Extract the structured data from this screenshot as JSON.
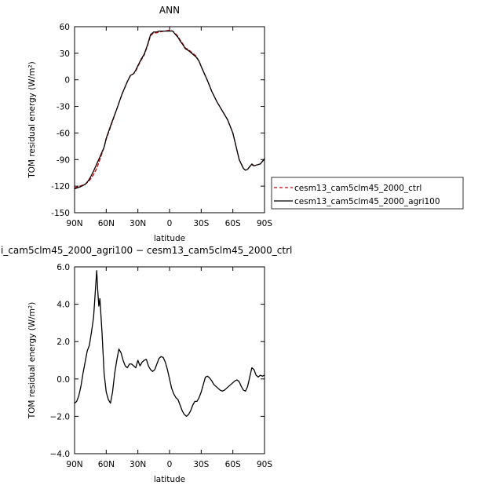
{
  "chart_data": [
    {
      "type": "line",
      "title": "ANN",
      "xlabel": "latitude",
      "ylabel": "TOM residual energy (W/m²)",
      "xlim": [
        90,
        -90
      ],
      "ylim": [
        -150,
        60
      ],
      "x_ticks": [
        90,
        60,
        30,
        0,
        -30,
        -60,
        -90
      ],
      "x_tick_labels": [
        "90N",
        "60N",
        "30N",
        "0",
        "30S",
        "60S",
        "90S"
      ],
      "y_ticks": [
        60,
        30,
        0,
        -30,
        -60,
        -90,
        -120,
        -150
      ],
      "y_tick_labels": [
        "60",
        "30",
        "0",
        "-30",
        "-60",
        "-90",
        "-120",
        "-150"
      ],
      "grid": false,
      "legend_position": "right",
      "legend": [
        "cesm13_cam5clm45_2000_ctrl",
        "cesm13_cam5clm45_2000_agri100"
      ],
      "series": [
        {
          "name": "cesm13_cam5clm45_2000_ctrl",
          "color": "#cc0000",
          "dash": "dashed",
          "x": [
            90,
            85,
            80,
            77,
            75,
            72,
            69,
            66,
            62,
            60,
            55,
            50,
            45,
            40,
            37,
            34,
            32,
            30,
            27,
            24,
            21,
            18,
            15,
            12,
            10,
            5,
            0,
            -3,
            -5,
            -8,
            -10,
            -13,
            -15,
            -18,
            -20,
            -22,
            -25,
            -28,
            -30,
            -33,
            -36,
            -40,
            -45,
            -50,
            -55,
            -60,
            -63,
            -66,
            -70,
            -72,
            -74,
            -76,
            -78,
            -80,
            -83,
            -86,
            -88,
            -90
          ],
          "y": [
            -122,
            -120,
            -118,
            -115,
            -112,
            -107,
            -100,
            -90,
            -76,
            -67,
            -50,
            -33,
            -16,
            -2,
            5,
            7,
            10,
            15,
            22,
            28,
            38,
            50,
            53,
            53,
            54,
            55,
            56,
            55,
            53,
            49,
            45,
            40,
            36,
            34,
            32,
            30,
            27,
            21,
            15,
            7,
            -1,
            -13,
            -25,
            -35,
            -45,
            -60,
            -75,
            -90,
            -100,
            -102,
            -101,
            -98,
            -96,
            -97,
            -96,
            -95,
            -92,
            -90
          ]
        },
        {
          "name": "cesm13_cam5clm45_2000_agri100",
          "color": "#000000",
          "dash": "solid",
          "x": [
            90,
            85,
            80,
            77,
            75,
            72,
            69,
            66,
            62,
            60,
            55,
            50,
            45,
            40,
            37,
            34,
            32,
            30,
            27,
            24,
            21,
            18,
            15,
            12,
            10,
            5,
            0,
            -3,
            -5,
            -8,
            -10,
            -13,
            -15,
            -18,
            -20,
            -22,
            -25,
            -28,
            -30,
            -33,
            -36,
            -40,
            -45,
            -50,
            -55,
            -60,
            -63,
            -66,
            -70,
            -72,
            -74,
            -76,
            -78,
            -80,
            -83,
            -86,
            -88,
            -90
          ],
          "y": [
            -123,
            -121,
            -118,
            -114,
            -110,
            -103,
            -95,
            -87,
            -76,
            -66,
            -49,
            -33,
            -16,
            -2,
            5,
            7,
            11,
            16,
            23,
            29,
            39,
            51,
            54,
            54,
            55,
            55,
            55,
            55,
            52,
            48,
            44,
            39,
            35,
            33,
            31,
            29,
            26,
            21,
            15,
            7,
            -1,
            -13,
            -25,
            -35,
            -45,
            -60,
            -75,
            -90,
            -100,
            -102,
            -101,
            -98,
            -95,
            -97,
            -96,
            -95,
            -92,
            -89
          ]
        }
      ]
    },
    {
      "type": "line",
      "title": "i_cam5clm45_2000_agri100 − cesm13_cam5clm45_2000_ctrl",
      "xlabel": "latitude",
      "ylabel": "TOM residual energy (W/m²)",
      "xlim": [
        90,
        -90
      ],
      "ylim": [
        -4.0,
        6.0
      ],
      "x_ticks": [
        90,
        60,
        30,
        0,
        -30,
        -60,
        -90
      ],
      "x_tick_labels": [
        "90N",
        "60N",
        "30N",
        "0",
        "30S",
        "60S",
        "90S"
      ],
      "y_ticks": [
        6,
        4,
        2,
        0,
        -2,
        -4
      ],
      "y_tick_labels": [
        "6.0",
        "4.0",
        "2.0",
        "0.0",
        "−2.0",
        "−4.0"
      ],
      "grid": false,
      "series": [
        {
          "color": "#000000",
          "dash": "solid",
          "x": [
            90,
            88,
            86,
            84,
            82,
            80,
            78,
            76,
            74,
            72,
            71,
            70,
            69,
            68,
            67,
            66,
            64,
            62,
            60,
            58,
            56,
            54,
            52,
            50,
            48,
            46,
            44,
            42,
            40,
            38,
            36,
            34,
            32,
            30,
            28,
            26,
            24,
            22,
            20,
            18,
            16,
            14,
            12,
            10,
            8,
            6,
            4,
            2,
            0,
            -2,
            -4,
            -6,
            -8,
            -10,
            -12,
            -14,
            -16,
            -18,
            -20,
            -22,
            -24,
            -26,
            -28,
            -30,
            -32,
            -34,
            -36,
            -38,
            -40,
            -42,
            -44,
            -46,
            -48,
            -50,
            -52,
            -54,
            -56,
            -58,
            -60,
            -62,
            -64,
            -66,
            -68,
            -70,
            -72,
            -74,
            -76,
            -78,
            -80,
            -82,
            -84,
            -86,
            -88,
            -90
          ],
          "y": [
            -1.3,
            -1.2,
            -0.9,
            -0.4,
            0.3,
            0.9,
            1.5,
            1.8,
            2.5,
            3.3,
            4.1,
            5.0,
            5.8,
            4.7,
            3.9,
            4.3,
            2.5,
            0.3,
            -0.7,
            -1.1,
            -1.3,
            -0.7,
            0.3,
            1.0,
            1.6,
            1.4,
            1.0,
            0.7,
            0.6,
            0.8,
            0.8,
            0.7,
            0.6,
            1.0,
            0.7,
            0.9,
            1.0,
            1.05,
            0.7,
            0.5,
            0.4,
            0.5,
            0.8,
            1.1,
            1.2,
            1.15,
            0.9,
            0.5,
            0.0,
            -0.5,
            -0.8,
            -1.0,
            -1.1,
            -1.4,
            -1.7,
            -1.9,
            -2.0,
            -1.9,
            -1.7,
            -1.4,
            -1.2,
            -1.2,
            -1.0,
            -0.7,
            -0.3,
            0.1,
            0.15,
            0.05,
            -0.1,
            -0.3,
            -0.4,
            -0.5,
            -0.6,
            -0.65,
            -0.6,
            -0.5,
            -0.4,
            -0.3,
            -0.2,
            -0.1,
            -0.05,
            -0.15,
            -0.4,
            -0.6,
            -0.65,
            -0.4,
            0.1,
            0.6,
            0.5,
            0.2,
            0.1,
            0.2,
            0.15,
            0.2
          ]
        }
      ]
    }
  ]
}
